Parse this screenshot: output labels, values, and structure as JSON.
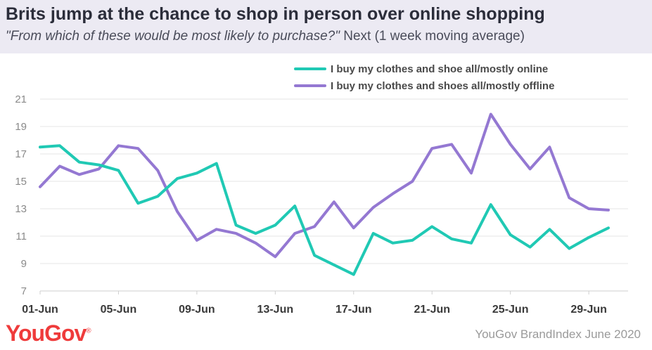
{
  "header": {
    "title": "Brits jump at the chance to shop in person over online shopping",
    "question": "\"From which of these would be most likely to purchase?\"",
    "subtitle_rest": " Next (1 week moving average)"
  },
  "footer": {
    "logo": "YouGov",
    "logo_mark": "®",
    "source": "YouGov BrandIndex June 2020"
  },
  "colors": {
    "online": "#20c9b4",
    "offline": "#9478d2",
    "grid": "#e6e6e6"
  },
  "chart_data": {
    "type": "line",
    "x": [
      "01-Jun",
      "02-Jun",
      "03-Jun",
      "04-Jun",
      "05-Jun",
      "06-Jun",
      "07-Jun",
      "08-Jun",
      "09-Jun",
      "10-Jun",
      "11-Jun",
      "12-Jun",
      "13-Jun",
      "14-Jun",
      "15-Jun",
      "16-Jun",
      "17-Jun",
      "18-Jun",
      "19-Jun",
      "20-Jun",
      "21-Jun",
      "22-Jun",
      "23-Jun",
      "24-Jun",
      "25-Jun",
      "26-Jun",
      "27-Jun",
      "28-Jun",
      "29-Jun",
      "30-Jun"
    ],
    "xticks": [
      "01-Jun",
      "05-Jun",
      "09-Jun",
      "13-Jun",
      "17-Jun",
      "21-Jun",
      "25-Jun",
      "29-Jun"
    ],
    "yticks": [
      7,
      9,
      11,
      13,
      15,
      17,
      19,
      21
    ],
    "ylim": [
      7,
      21
    ],
    "grid": true,
    "legend_position": "top-right",
    "series": [
      {
        "name": "I buy my clothes and shoe all/mostly online",
        "values": [
          17.5,
          17.6,
          16.4,
          16.2,
          15.8,
          13.4,
          13.9,
          15.2,
          15.6,
          16.3,
          11.8,
          11.2,
          11.8,
          13.2,
          9.6,
          8.9,
          8.2,
          11.2,
          10.5,
          10.7,
          11.7,
          10.8,
          10.5,
          13.3,
          11.1,
          10.2,
          11.5,
          10.1,
          10.9,
          11.6
        ]
      },
      {
        "name": "I buy my clothes and shoes all/mostly offline",
        "values": [
          14.6,
          16.1,
          15.5,
          15.9,
          17.6,
          17.4,
          15.8,
          12.8,
          10.7,
          11.5,
          11.2,
          10.5,
          9.5,
          11.2,
          11.7,
          13.5,
          11.6,
          13.1,
          14.1,
          15.0,
          17.4,
          17.7,
          15.6,
          19.9,
          17.7,
          15.9,
          17.5,
          13.8,
          13.0,
          12.9
        ]
      }
    ]
  }
}
